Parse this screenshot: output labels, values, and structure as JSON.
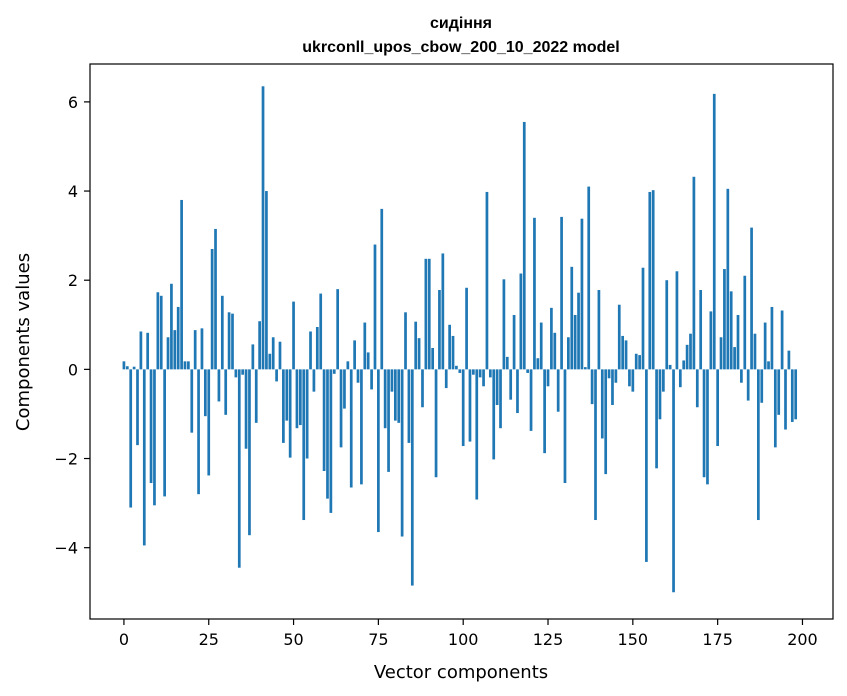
{
  "chart_data": {
    "type": "bar",
    "title_line1": "сидіння",
    "title_line2": "ukrconll_upos_cbow_200_10_2022 model",
    "xlabel": "Vector components",
    "ylabel": "Components values",
    "xlim": [
      -10,
      209
    ],
    "ylim": [
      -5.6,
      6.85
    ],
    "xticks": [
      0,
      25,
      50,
      75,
      100,
      125,
      150,
      175,
      200
    ],
    "yticks": [
      -4,
      -2,
      0,
      2,
      4,
      6
    ],
    "ytick_labels": [
      "−4",
      "−2",
      "0",
      "2",
      "4",
      "6"
    ],
    "grid": false,
    "bar_color": "#1f77b4",
    "values": [
      0.18,
      0.07,
      -3.1,
      0.06,
      -1.7,
      0.85,
      -3.95,
      0.82,
      -2.55,
      -3.05,
      1.73,
      1.65,
      -2.85,
      0.72,
      1.92,
      0.88,
      1.4,
      3.8,
      0.18,
      0.18,
      -1.42,
      0.88,
      -2.8,
      0.92,
      -1.05,
      -2.38,
      2.7,
      3.15,
      -0.72,
      1.65,
      -1.02,
      1.28,
      1.25,
      -0.18,
      -4.45,
      -0.12,
      -1.78,
      -3.72,
      0.56,
      -1.2,
      1.08,
      6.35,
      4.0,
      0.35,
      0.72,
      -0.27,
      0.62,
      -1.65,
      -1.15,
      -1.98,
      1.52,
      -1.32,
      -1.25,
      -3.38,
      -2.0,
      0.85,
      -0.5,
      0.95,
      1.7,
      -2.28,
      -2.9,
      -3.22,
      -0.1,
      1.8,
      -1.75,
      -0.88,
      0.18,
      -2.65,
      0.65,
      -0.3,
      -2.58,
      1.05,
      0.38,
      -0.45,
      2.8,
      -3.65,
      3.6,
      -1.32,
      -2.3,
      -0.5,
      -1.15,
      -1.2,
      -3.75,
      1.28,
      -1.65,
      -4.85,
      1.07,
      0.7,
      -0.85,
      2.48,
      2.48,
      0.48,
      -2.42,
      1.78,
      2.6,
      -0.42,
      1.0,
      0.75,
      0.08,
      -0.08,
      -1.72,
      1.83,
      -1.62,
      -0.12,
      -2.92,
      -0.18,
      -0.38,
      3.98,
      -0.18,
      -2.02,
      -0.8,
      -1.32,
      2.02,
      0.28,
      -0.68,
      1.22,
      -0.98,
      2.15,
      5.55,
      -0.08,
      -1.38,
      3.4,
      0.25,
      1.05,
      -1.88,
      -0.38,
      1.38,
      0.82,
      -0.95,
      3.42,
      -2.55,
      0.72,
      2.3,
      1.22,
      1.72,
      3.38,
      0.05,
      4.1,
      -0.78,
      -3.38,
      1.78,
      -1.55,
      -2.35,
      -0.2,
      -0.8,
      -0.3,
      1.45,
      0.75,
      0.65,
      -0.38,
      -0.5,
      0.35,
      0.32,
      2.28,
      -4.32,
      3.98,
      4.02,
      -2.22,
      -1.12,
      -0.5,
      2.0,
      0.1,
      -5.0,
      2.2,
      -0.4,
      0.2,
      0.55,
      0.8,
      4.32,
      -0.85,
      1.78,
      -2.42,
      -2.58,
      1.3,
      6.18,
      -1.72,
      0.72,
      2.25,
      4.05,
      1.75,
      0.5,
      1.22,
      -0.3,
      2.1,
      -0.7,
      3.18,
      0.8,
      -3.38,
      -0.75,
      1.05,
      0.18,
      1.4,
      -1.75,
      -1.02,
      1.32,
      -1.35,
      0.42,
      -1.18,
      -1.12
    ]
  }
}
